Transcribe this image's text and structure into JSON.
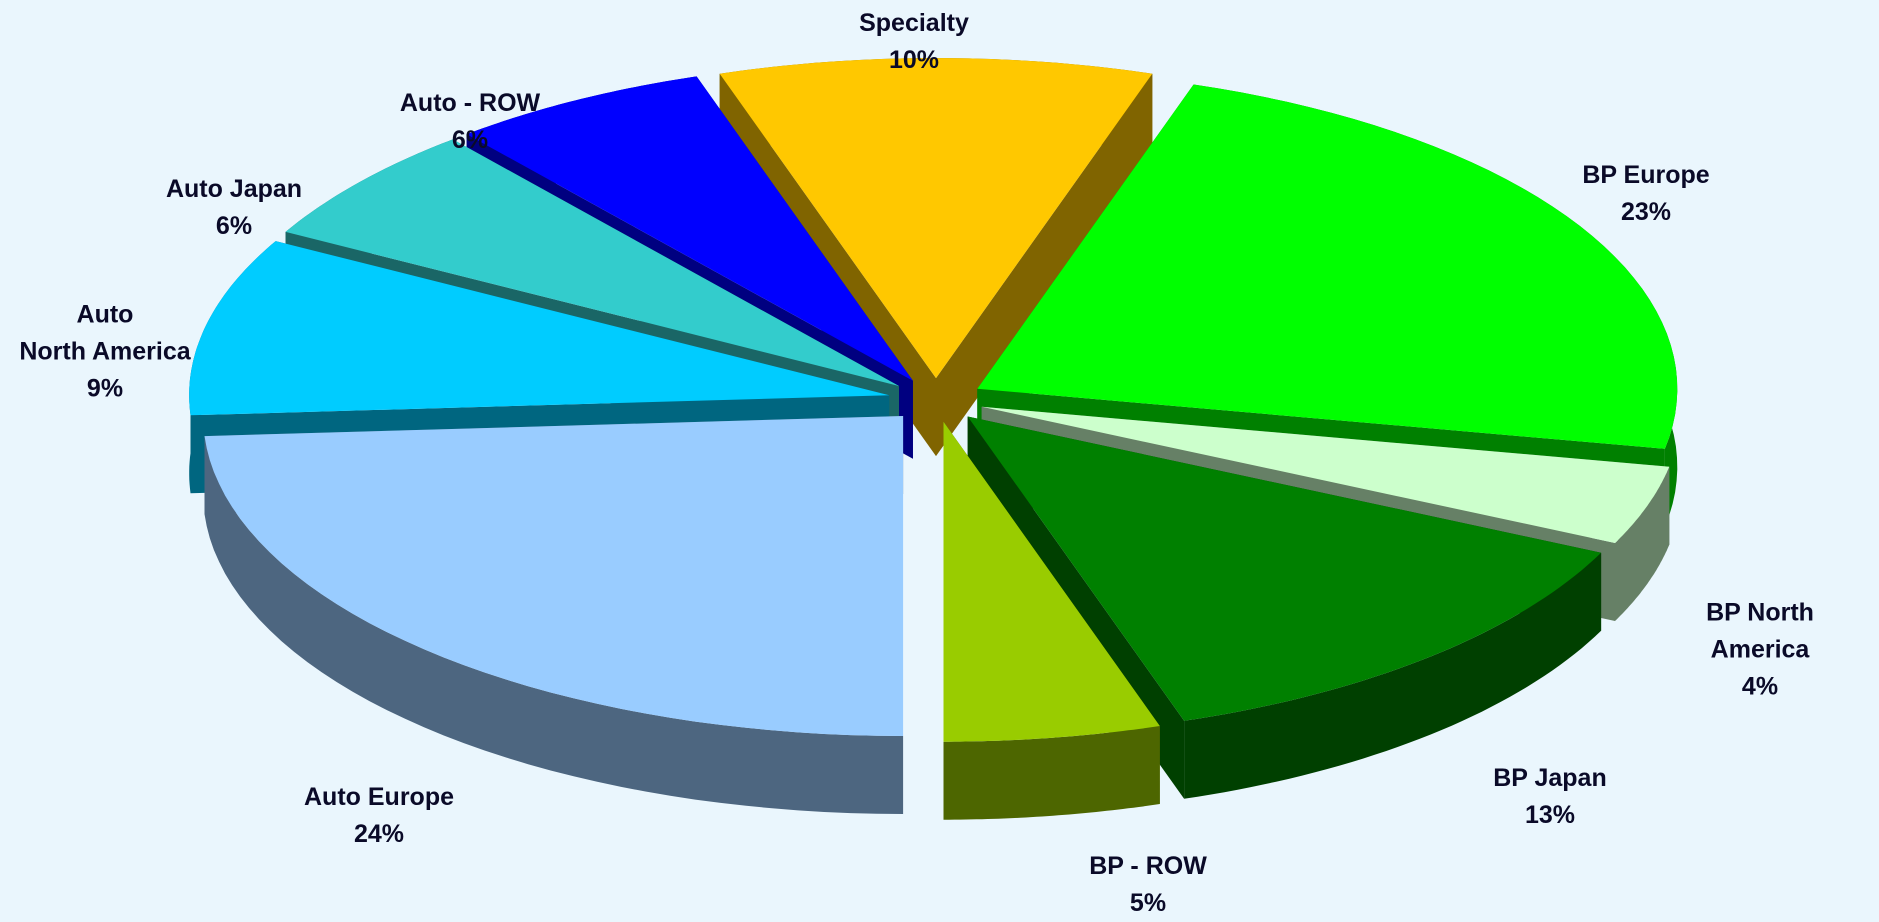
{
  "chart_data": {
    "type": "pie3d",
    "categories": [
      "Specialty",
      "BP Europe",
      "BP North America",
      "BP Japan",
      "BP - ROW",
      "Auto Europe",
      "Auto\nNorth America",
      "Auto Japan",
      "Auto - ROW"
    ],
    "values": [
      10,
      23,
      4,
      13,
      5,
      24,
      9,
      6,
      6
    ],
    "value_labels": [
      "10%",
      "23%",
      "4%",
      "13%",
      "5%",
      "24%",
      "9%",
      "6%",
      "6%"
    ],
    "colors": [
      "#ffc800",
      "#00ff00",
      "#ccffcc",
      "#008000",
      "#99cc00",
      "#99ccff",
      "#00ccff",
      "#33cccc",
      "#0000ff"
    ]
  }
}
